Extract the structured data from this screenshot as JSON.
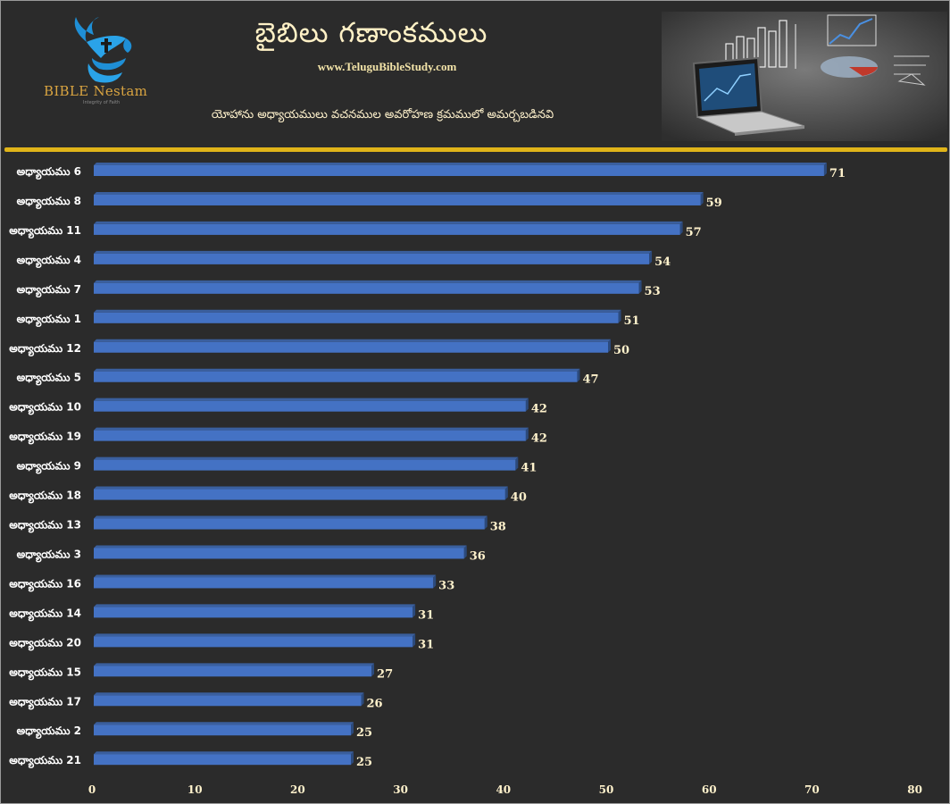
{
  "header": {
    "title": "బైబిలు గణాంకములు",
    "website": "www.TeluguBibleStudy.com",
    "subtitle": "యోహాను అధ్యాయములు వచనముల అవరోహణ క్రమములో అమర్చబడినవి",
    "logo_text": "BIBLE Nestam",
    "logo_tagline": "Integrity of Faith",
    "logo_icon": "dove-cross-hands-icon",
    "photo_icon": "laptop-charts-illustration"
  },
  "colors": {
    "background": "#2b2b2b",
    "bar": "#4472c4",
    "divider": "#e0b419",
    "text": "#fff2cc"
  },
  "chart_data": {
    "type": "bar",
    "orientation": "horizontal",
    "categories": [
      "అధ్యాయము 6",
      "అధ్యాయము 8",
      "అధ్యాయము 11",
      "అధ్యాయము 4",
      "అధ్యాయము 7",
      "అధ్యాయము 1",
      "అధ్యాయము 12",
      "అధ్యాయము 5",
      "అధ్యాయము 10",
      "అధ్యాయము 19",
      "అధ్యాయము 9",
      "అధ్యాయము 18",
      "అధ్యాయము 13",
      "అధ్యాయము 3",
      "అధ్యాయము 16",
      "అధ్యాయము 14",
      "అధ్యాయము 20",
      "అధ్యాయము 15",
      "అధ్యాయము 17",
      "అధ్యాయము 2",
      "అధ్యాయము 21"
    ],
    "values": [
      71,
      59,
      57,
      54,
      53,
      51,
      50,
      47,
      42,
      42,
      41,
      40,
      38,
      36,
      33,
      31,
      31,
      27,
      26,
      25,
      25
    ],
    "xlim": [
      0,
      80
    ],
    "xticks": [
      0,
      10,
      20,
      30,
      40,
      50,
      60,
      70,
      80
    ],
    "grid": false,
    "legend": "none",
    "data_labels": true
  }
}
